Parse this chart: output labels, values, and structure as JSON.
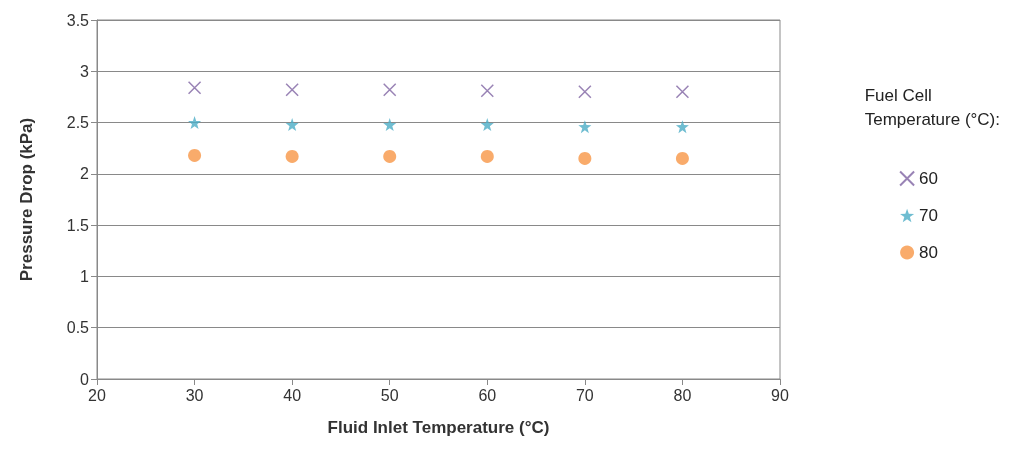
{
  "chart_data": {
    "type": "scatter",
    "xlabel": "Fluid Inlet Temperature (°C)",
    "ylabel": "Pressure Drop (kPa)",
    "legend_title": "Fuel Cell\nTemperature (°C):",
    "x": [
      30,
      40,
      50,
      60,
      70,
      80
    ],
    "series": [
      {
        "name": "60",
        "color": "#8064a2",
        "marker": "cross",
        "values": [
          2.84,
          2.82,
          2.82,
          2.81,
          2.8,
          2.8
        ]
      },
      {
        "name": "70",
        "color": "#4bacc6",
        "marker": "star",
        "values": [
          2.5,
          2.48,
          2.48,
          2.48,
          2.46,
          2.46
        ]
      },
      {
        "name": "80",
        "color": "#f79646",
        "marker": "circle",
        "values": [
          2.18,
          2.17,
          2.17,
          2.17,
          2.15,
          2.15
        ]
      }
    ],
    "xlim": [
      20,
      90
    ],
    "xticks": [
      20,
      30,
      40,
      50,
      60,
      70,
      80,
      90
    ],
    "ylim": [
      0,
      3.5
    ],
    "yticks": [
      0,
      0.5,
      1,
      1.5,
      2,
      2.5,
      3,
      3.5
    ],
    "grid": "y",
    "legend": "right"
  }
}
